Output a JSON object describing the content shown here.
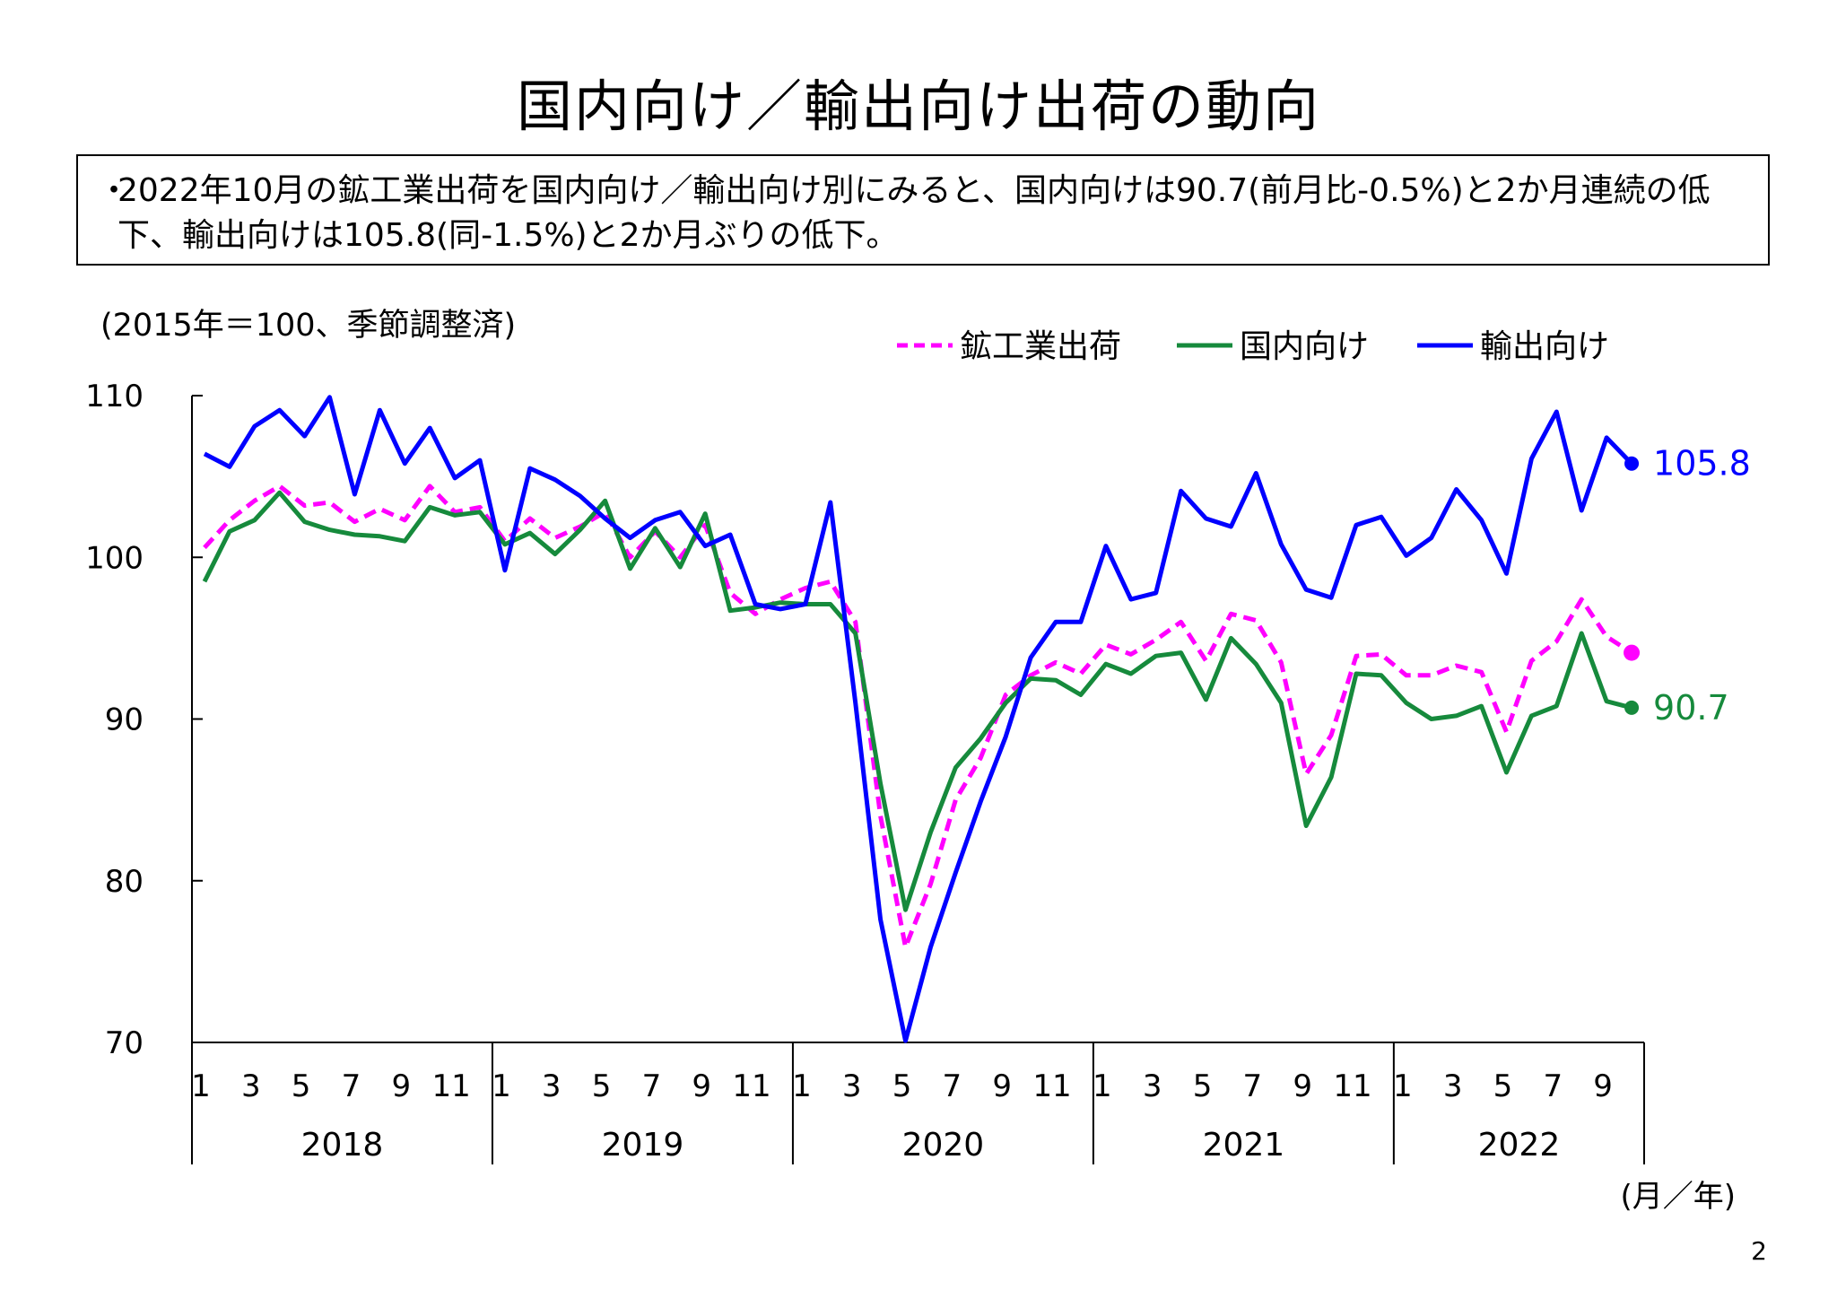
{
  "title": "国内向け／輸出向け出荷の動向",
  "summary": "2022年10月の鉱工業出荷を国内向け／輸出向け別にみると、国内向けは90.7(前月比-0.5%)と2か月連続の低下、輸出向けは105.8(同-1.5%)と2か月ぶりの低下。",
  "summary_bullet": "・",
  "page_number": "2",
  "colors": {
    "total": "#ff00ff",
    "domestic": "#168a3c",
    "export": "#0000ff"
  },
  "chart_data": {
    "type": "line",
    "unit_note": "(2015年＝100、季節調整済)",
    "x_unit": "(月／年)",
    "ylim": [
      70,
      110
    ],
    "yticks": [
      70,
      80,
      90,
      100,
      110
    ],
    "grid": false,
    "legend_position": "top-right",
    "month_labels": [
      "1",
      "3",
      "5",
      "7",
      "9",
      "11"
    ],
    "years": [
      "2018",
      "2019",
      "2020",
      "2021",
      "2022"
    ],
    "series": [
      {
        "name": "鉱工業出荷",
        "key": "total",
        "style": "dashed",
        "values": [
          100.6,
          102.3,
          103.5,
          104.4,
          103.2,
          103.4,
          102.2,
          103.0,
          102.3,
          104.4,
          102.8,
          103.1,
          101.0,
          102.4,
          101.2,
          101.9,
          102.8,
          100.0,
          101.6,
          100.0,
          102.0,
          97.8,
          96.5,
          97.4,
          98.1,
          98.5,
          96.0,
          84.0,
          75.9,
          79.8,
          85.0,
          87.6,
          91.5,
          92.7,
          93.5,
          92.8,
          94.6,
          94.0,
          94.9,
          96.0,
          93.6,
          96.5,
          96.1,
          93.5,
          86.6,
          89.0,
          93.9,
          94.0,
          92.7,
          92.7,
          93.3,
          92.9,
          89.2,
          93.6,
          94.8,
          97.4,
          95.1,
          94.1
        ]
      },
      {
        "name": "国内向け",
        "key": "domestic",
        "style": "solid",
        "values": [
          98.5,
          101.6,
          102.3,
          104.0,
          102.2,
          101.7,
          101.4,
          101.3,
          101.0,
          103.1,
          102.6,
          102.8,
          100.8,
          101.5,
          100.2,
          101.7,
          103.5,
          99.3,
          101.8,
          99.4,
          102.7,
          96.7,
          96.9,
          97.2,
          97.1,
          97.1,
          95.3,
          86.0,
          78.2,
          83.0,
          87.0,
          88.8,
          91.0,
          92.5,
          92.4,
          91.5,
          93.4,
          92.8,
          93.9,
          94.1,
          91.2,
          95.0,
          93.4,
          91.0,
          83.4,
          86.4,
          92.8,
          92.7,
          91.0,
          90.0,
          90.2,
          90.8,
          86.7,
          90.2,
          90.8,
          95.3,
          91.1,
          90.7
        ]
      },
      {
        "name": "輸出向け",
        "key": "export",
        "style": "solid",
        "values": [
          106.4,
          105.6,
          108.1,
          109.1,
          107.5,
          109.9,
          103.9,
          109.1,
          105.8,
          108.0,
          104.9,
          106.0,
          99.2,
          105.5,
          104.8,
          103.8,
          102.4,
          101.2,
          102.3,
          102.8,
          100.7,
          101.4,
          97.1,
          96.8,
          97.1,
          103.4,
          91.0,
          77.6,
          70.1,
          75.9,
          80.5,
          84.9,
          88.9,
          93.8,
          96.0,
          96.0,
          100.7,
          97.4,
          97.8,
          104.1,
          102.4,
          101.9,
          105.2,
          100.8,
          98.0,
          97.5,
          102.0,
          102.5,
          100.1,
          101.2,
          104.2,
          102.3,
          99.0,
          106.1,
          109.0,
          102.9,
          107.4,
          105.8
        ]
      }
    ],
    "end_labels": [
      {
        "key": "export",
        "text": "105.8"
      },
      {
        "key": "domestic",
        "text": "90.7"
      }
    ]
  }
}
